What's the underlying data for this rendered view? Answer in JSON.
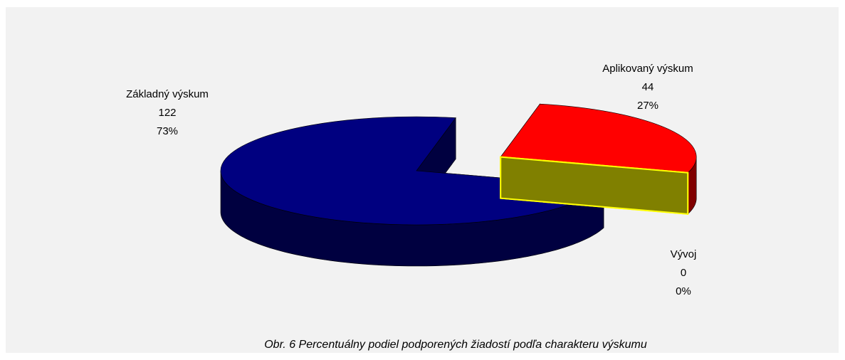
{
  "chart_data": {
    "type": "pie",
    "title": "Obr. 6  Percentuálny podiel podporených žiadostí podľa charakteru výskumu",
    "categories": [
      "Základný výskum",
      "Aplikovaný výskum",
      "Vývoj"
    ],
    "values": [
      122,
      44,
      0
    ],
    "percent_labels": [
      "73%",
      "27%",
      "0%"
    ],
    "colors": [
      "#000080",
      "#ff0000",
      "#808000"
    ],
    "exploded": [
      false,
      true,
      true
    ]
  }
}
